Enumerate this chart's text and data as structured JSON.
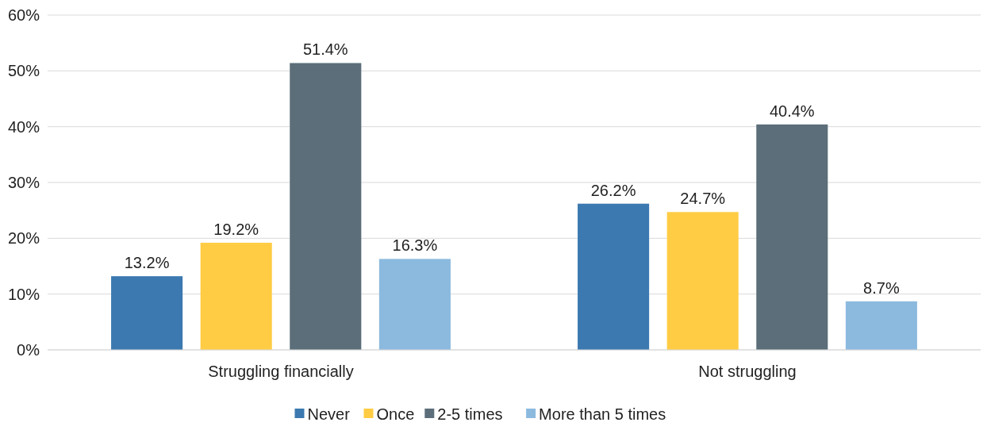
{
  "chart_data": {
    "type": "bar",
    "categories": [
      "Struggling financially",
      "Not struggling"
    ],
    "series": [
      {
        "name": "Never",
        "color": "#3b79b0",
        "values": [
          13.2,
          26.2
        ],
        "value_labels": [
          "13.2%",
          "26.2%"
        ]
      },
      {
        "name": "Once",
        "color": "#ffcc44",
        "values": [
          19.2,
          24.7
        ],
        "value_labels": [
          "19.2%",
          "24.7%"
        ]
      },
      {
        "name": "2-5 times",
        "color": "#5b6e79",
        "values": [
          51.4,
          40.4
        ],
        "value_labels": [
          "51.4%",
          "40.4%"
        ]
      },
      {
        "name": "More than 5 times",
        "color": "#8cbadf",
        "values": [
          16.3,
          8.7
        ],
        "value_labels": [
          "16.3%",
          "8.7%"
        ]
      }
    ],
    "ylim": [
      0,
      60
    ],
    "yticks": [
      {
        "value": 0,
        "label": "0%"
      },
      {
        "value": 10,
        "label": "10%"
      },
      {
        "value": 20,
        "label": "20%"
      },
      {
        "value": 30,
        "label": "30%"
      },
      {
        "value": 40,
        "label": "40%"
      },
      {
        "value": 50,
        "label": "50%"
      },
      {
        "value": 60,
        "label": "60%"
      }
    ],
    "grid": "y",
    "legend": "bottom"
  }
}
